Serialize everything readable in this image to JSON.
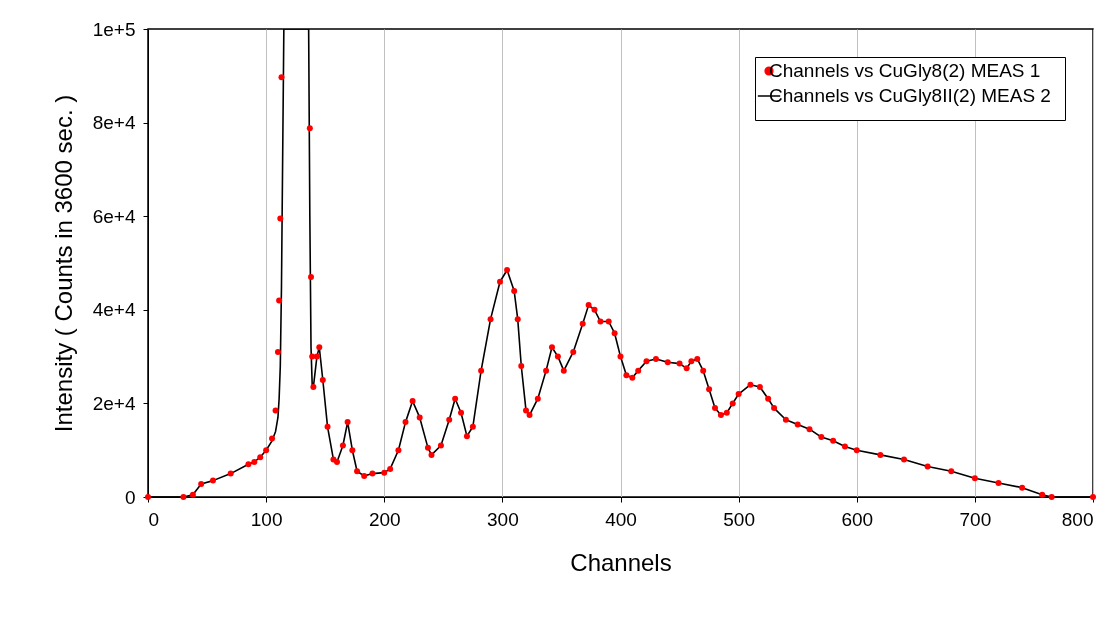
{
  "chart_data": {
    "type": "line",
    "xlabel": "Channels",
    "ylabel": "Intensity ( Counts in 3600 sec. )",
    "x": [
      0,
      30,
      38,
      45,
      55,
      70,
      85,
      90,
      95,
      100,
      105,
      108,
      110,
      111,
      112,
      113,
      115,
      136,
      137,
      138,
      139,
      140,
      143,
      145,
      148,
      152,
      157,
      160,
      165,
      169,
      173,
      177,
      183,
      190,
      200,
      205,
      212,
      218,
      224,
      230,
      237,
      240,
      248,
      255,
      260,
      265,
      270,
      275,
      282,
      290,
      298,
      304,
      310,
      313,
      316,
      320,
      323,
      330,
      337,
      342,
      347,
      352,
      360,
      368,
      373,
      378,
      383,
      390,
      395,
      400,
      405,
      410,
      415,
      422,
      430,
      440,
      450,
      456,
      460,
      465,
      470,
      475,
      480,
      485,
      490,
      495,
      500,
      510,
      518,
      525,
      530,
      540,
      550,
      560,
      570,
      580,
      590,
      600,
      620,
      640,
      660,
      680,
      700,
      720,
      740,
      757,
      765,
      800
    ],
    "series": [
      {
        "name": "Channels vs CuGly8(2) MEAS 1",
        "type": "scatter",
        "marker": "circle",
        "color": "#ff0000",
        "values": [
          0,
          0,
          500,
          2800,
          3500,
          5000,
          7000,
          7500,
          8500,
          10000,
          12500,
          18500,
          31000,
          42000,
          59500,
          89700,
          null,
          null,
          78800,
          47000,
          30000,
          23500,
          30000,
          32000,
          25000,
          15000,
          8000,
          7500,
          11000,
          16000,
          10000,
          5500,
          4500,
          5000,
          5200,
          6000,
          10000,
          16000,
          20500,
          17000,
          10500,
          9000,
          11000,
          16500,
          21000,
          18000,
          13000,
          15000,
          27000,
          38000,
          46000,
          48500,
          44000,
          38000,
          28000,
          18500,
          17500,
          21000,
          27000,
          32000,
          30000,
          27000,
          31000,
          37000,
          41000,
          40000,
          37500,
          37500,
          35000,
          30000,
          26000,
          25500,
          27000,
          29000,
          29500,
          28800,
          28500,
          27500,
          29000,
          29500,
          27000,
          23000,
          19000,
          17500,
          18000,
          20000,
          22000,
          24000,
          23500,
          21000,
          19000,
          16500,
          15500,
          14500,
          12800,
          12000,
          10800,
          10000,
          9000,
          8000,
          6500,
          5500,
          4000,
          3000,
          2000,
          500,
          0,
          0
        ]
      },
      {
        "name": "Channels vs CuGly8II(2) MEAS 2",
        "marker": "none",
        "color": "#000000",
        "values": [
          0,
          0,
          500,
          2800,
          3500,
          5000,
          7000,
          7500,
          8500,
          10000,
          12000,
          14000,
          17000,
          21000,
          28000,
          45000,
          100000,
          100000,
          60000,
          32000,
          24000,
          23500,
          30000,
          32000,
          25000,
          15000,
          8000,
          7500,
          11000,
          16000,
          10000,
          5500,
          4500,
          5000,
          5200,
          6000,
          10000,
          16000,
          20500,
          17000,
          10500,
          9000,
          11000,
          16500,
          21000,
          18000,
          13000,
          15000,
          27000,
          38000,
          46000,
          48500,
          44000,
          38000,
          28000,
          18500,
          17500,
          21000,
          27000,
          32000,
          30000,
          27000,
          31000,
          37000,
          41000,
          40000,
          37500,
          37500,
          35000,
          30000,
          26000,
          25500,
          27000,
          29000,
          29500,
          28800,
          28500,
          27500,
          29000,
          29500,
          27000,
          23000,
          19000,
          17500,
          18000,
          20000,
          22000,
          24000,
          23500,
          21000,
          19000,
          16500,
          15500,
          14500,
          12800,
          12000,
          10800,
          10000,
          9000,
          8000,
          6500,
          5500,
          4000,
          3000,
          2000,
          500,
          0,
          0
        ]
      }
    ],
    "xlim": [
      0,
      800
    ],
    "xticks": [
      0,
      100,
      200,
      300,
      400,
      500,
      600,
      700,
      800
    ],
    "ylim": [
      0,
      100000
    ],
    "yticks": [
      {
        "value": 0,
        "label": "0"
      },
      {
        "value": 20000,
        "label": "2e+4"
      },
      {
        "value": 40000,
        "label": "4e+4"
      },
      {
        "value": 60000,
        "label": "6e+4"
      },
      {
        "value": 80000,
        "label": "8e+4"
      },
      {
        "value": 100000,
        "label": "1e+5"
      }
    ],
    "grid": "x",
    "legend": "top right"
  }
}
